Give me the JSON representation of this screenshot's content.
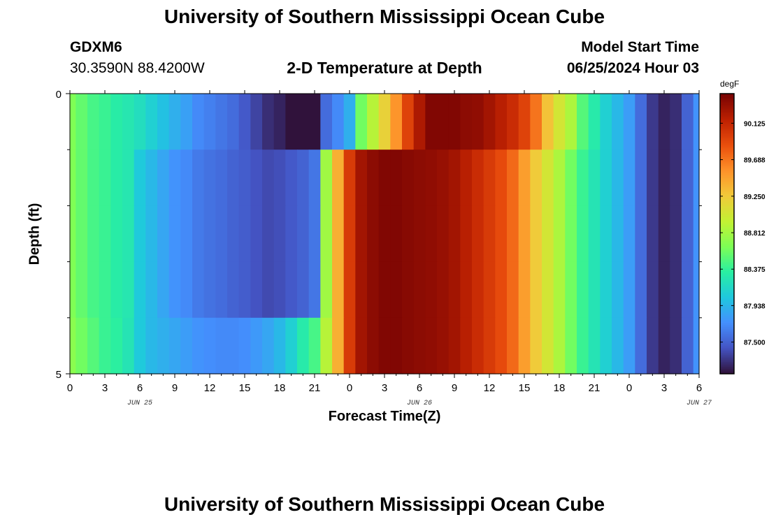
{
  "header": {
    "title": "University of Southern Mississippi Ocean Cube",
    "station": "GDXM6",
    "coords": "30.3590N  88.4200W",
    "subtitle": "2-D Temperature at Depth",
    "model_start_label": "Model Start Time",
    "model_start_value": "06/25/2024 Hour 03"
  },
  "footer": {
    "title": "University of Southern Mississippi Ocean Cube"
  },
  "chart_data": {
    "type": "heatmap",
    "title": "2-D Temperature at Depth",
    "xlabel": "Forecast Time(Z)",
    "ylabel": "Depth (ft)",
    "x_tick_labels": [
      "0",
      "3",
      "6",
      "9",
      "12",
      "15",
      "18",
      "21",
      "0",
      "3",
      "6",
      "9",
      "12",
      "15",
      "18",
      "21",
      "0",
      "3",
      "6"
    ],
    "date_labels": [
      "JUN 25",
      "JUN 26",
      "JUN 27"
    ],
    "x_start": "2024-06-25T00Z",
    "x_hours": [
      0,
      1,
      2,
      3,
      4,
      5,
      6,
      7,
      8,
      9,
      10,
      11,
      12,
      13,
      14,
      15,
      16,
      17,
      18,
      19,
      20,
      21,
      22,
      23,
      24,
      25,
      26,
      27,
      28,
      29,
      30,
      31,
      32,
      33,
      34,
      35,
      36,
      37,
      38,
      39,
      40,
      41,
      42,
      43,
      44,
      45,
      46,
      47,
      48,
      49,
      50,
      51,
      52,
      53,
      54
    ],
    "y_tick_labels": [
      "0",
      "5"
    ],
    "ylim": [
      0,
      5
    ],
    "depth_bins_ft": [
      0,
      1,
      2,
      3,
      4
    ],
    "colorbar": {
      "unit": "degF",
      "tick_values": [
        90.125,
        89.688,
        89.25,
        88.812,
        88.375,
        87.938,
        87.5
      ],
      "tick_labels": [
        "90.125",
        "89.688",
        "89.250",
        "88.812",
        "88.375",
        "87.938",
        "87.500"
      ],
      "range": [
        87.12,
        90.48
      ],
      "colors": [
        "#30123b",
        "#4454c4",
        "#4490fe",
        "#1fc8de",
        "#29efa2",
        "#7eff55",
        "#c3f133",
        "#f1ca3a",
        "#fe922a",
        "#ea4f0d",
        "#be2102",
        "#7a0403"
      ]
    },
    "values_degF": {
      "rows": [
        [
          88.65,
          88.55,
          88.45,
          88.4,
          88.32,
          88.27,
          88.2,
          88.1,
          88.0,
          87.9,
          87.82,
          87.7,
          87.65,
          87.6,
          87.55,
          87.45,
          87.35,
          87.25,
          87.2,
          87.1,
          86.8,
          87.05,
          87.55,
          87.7,
          87.9,
          88.6,
          88.9,
          89.2,
          89.55,
          89.95,
          90.25,
          90.45,
          90.45,
          90.45,
          90.4,
          90.38,
          90.3,
          90.2,
          90.1,
          89.95,
          89.7,
          89.3,
          89.05,
          88.85,
          88.5,
          88.3,
          88.1,
          87.95,
          87.8,
          87.55,
          87.3,
          87.2,
          87.25,
          87.5,
          87.75
        ],
        [
          88.65,
          88.55,
          88.45,
          88.4,
          88.32,
          88.27,
          88.05,
          87.95,
          87.85,
          87.75,
          87.7,
          87.62,
          87.58,
          87.55,
          87.5,
          87.47,
          87.42,
          87.38,
          87.4,
          87.45,
          87.5,
          87.6,
          88.8,
          89.4,
          90.0,
          90.3,
          90.4,
          90.45,
          90.45,
          90.42,
          90.4,
          90.38,
          90.35,
          90.3,
          90.2,
          90.1,
          90.0,
          89.9,
          89.75,
          89.5,
          89.25,
          89.05,
          88.85,
          88.6,
          88.4,
          88.25,
          88.1,
          87.95,
          87.8,
          87.55,
          87.3,
          87.2,
          87.25,
          87.5,
          87.75
        ],
        [
          88.65,
          88.55,
          88.45,
          88.4,
          88.32,
          88.27,
          88.05,
          87.95,
          87.85,
          87.75,
          87.7,
          87.62,
          87.58,
          87.55,
          87.5,
          87.47,
          87.42,
          87.38,
          87.4,
          87.45,
          87.5,
          87.6,
          88.8,
          89.4,
          90.0,
          90.3,
          90.4,
          90.45,
          90.45,
          90.42,
          90.4,
          90.38,
          90.35,
          90.3,
          90.2,
          90.1,
          90.0,
          89.9,
          89.75,
          89.5,
          89.25,
          89.05,
          88.85,
          88.6,
          88.4,
          88.25,
          88.1,
          87.95,
          87.8,
          87.55,
          87.3,
          87.2,
          87.25,
          87.5,
          87.75
        ],
        [
          88.65,
          88.55,
          88.45,
          88.4,
          88.32,
          88.27,
          88.05,
          87.95,
          87.85,
          87.75,
          87.7,
          87.62,
          87.58,
          87.55,
          87.5,
          87.47,
          87.42,
          87.38,
          87.4,
          87.45,
          87.5,
          87.6,
          88.8,
          89.4,
          90.0,
          90.3,
          90.4,
          90.45,
          90.45,
          90.42,
          90.4,
          90.38,
          90.35,
          90.3,
          90.2,
          90.1,
          90.0,
          89.9,
          89.75,
          89.5,
          89.25,
          89.05,
          88.85,
          88.6,
          88.4,
          88.25,
          88.1,
          87.95,
          87.8,
          87.55,
          87.3,
          87.2,
          87.25,
          87.5,
          87.75
        ],
        [
          88.7,
          88.6,
          88.5,
          88.4,
          88.35,
          88.25,
          88.05,
          87.95,
          87.9,
          87.85,
          87.8,
          87.75,
          87.72,
          87.7,
          87.7,
          87.72,
          87.78,
          87.85,
          87.95,
          88.1,
          88.3,
          88.45,
          88.9,
          89.4,
          90.0,
          90.3,
          90.4,
          90.45,
          90.45,
          90.42,
          90.4,
          90.38,
          90.35,
          90.3,
          90.2,
          90.1,
          90.0,
          89.9,
          89.75,
          89.5,
          89.25,
          89.05,
          88.85,
          88.6,
          88.4,
          88.25,
          88.1,
          87.95,
          87.8,
          87.55,
          87.3,
          87.2,
          87.25,
          87.5,
          87.75
        ]
      ]
    }
  }
}
